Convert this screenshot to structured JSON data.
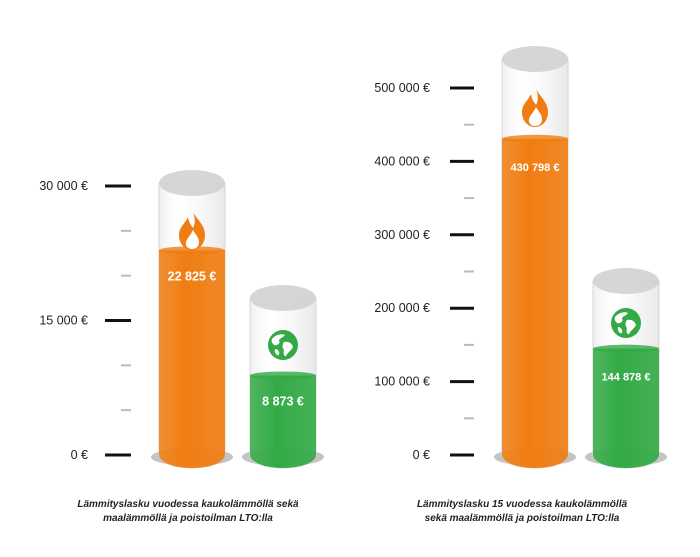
{
  "chart_data": [
    {
      "type": "bar",
      "categories": [
        "",
        ""
      ],
      "values": [
        22825,
        8873
      ],
      "value_labels": [
        "22 825 €",
        "8 873 €"
      ],
      "icons": [
        "flame-icon",
        "globe-icon"
      ],
      "colors": [
        "#f07d12",
        "#33aa46"
      ],
      "ylim": [
        0,
        30000
      ],
      "ytick_values": [
        0,
        15000,
        30000
      ],
      "ytick_labels": [
        "0 €",
        "15 000 €",
        "30 000 €"
      ],
      "caption_lines": [
        "Lämmityslasku vuodessa kaukolämmöllä sekä",
        "maalämmöllä ja poistoilman LTO:lla"
      ]
    },
    {
      "type": "bar",
      "categories": [
        "",
        ""
      ],
      "values": [
        430798,
        144878
      ],
      "value_labels": [
        "430 798 €",
        "144 878 €"
      ],
      "icons": [
        "flame-icon",
        "globe-icon"
      ],
      "colors": [
        "#f07d12",
        "#33aa46"
      ],
      "ylim": [
        0,
        500000
      ],
      "ytick_values": [
        0,
        100000,
        200000,
        300000,
        400000,
        500000
      ],
      "ytick_labels": [
        "0 €",
        "100 000 €",
        "200 000 €",
        "300 000 €",
        "400 000 €",
        "500 000 €"
      ],
      "caption_lines": [
        "Lämmityslasku 15 vuodessa kaukolämmöllä",
        "sekä maalämmöllä ja poistoilman LTO:lla"
      ]
    }
  ]
}
